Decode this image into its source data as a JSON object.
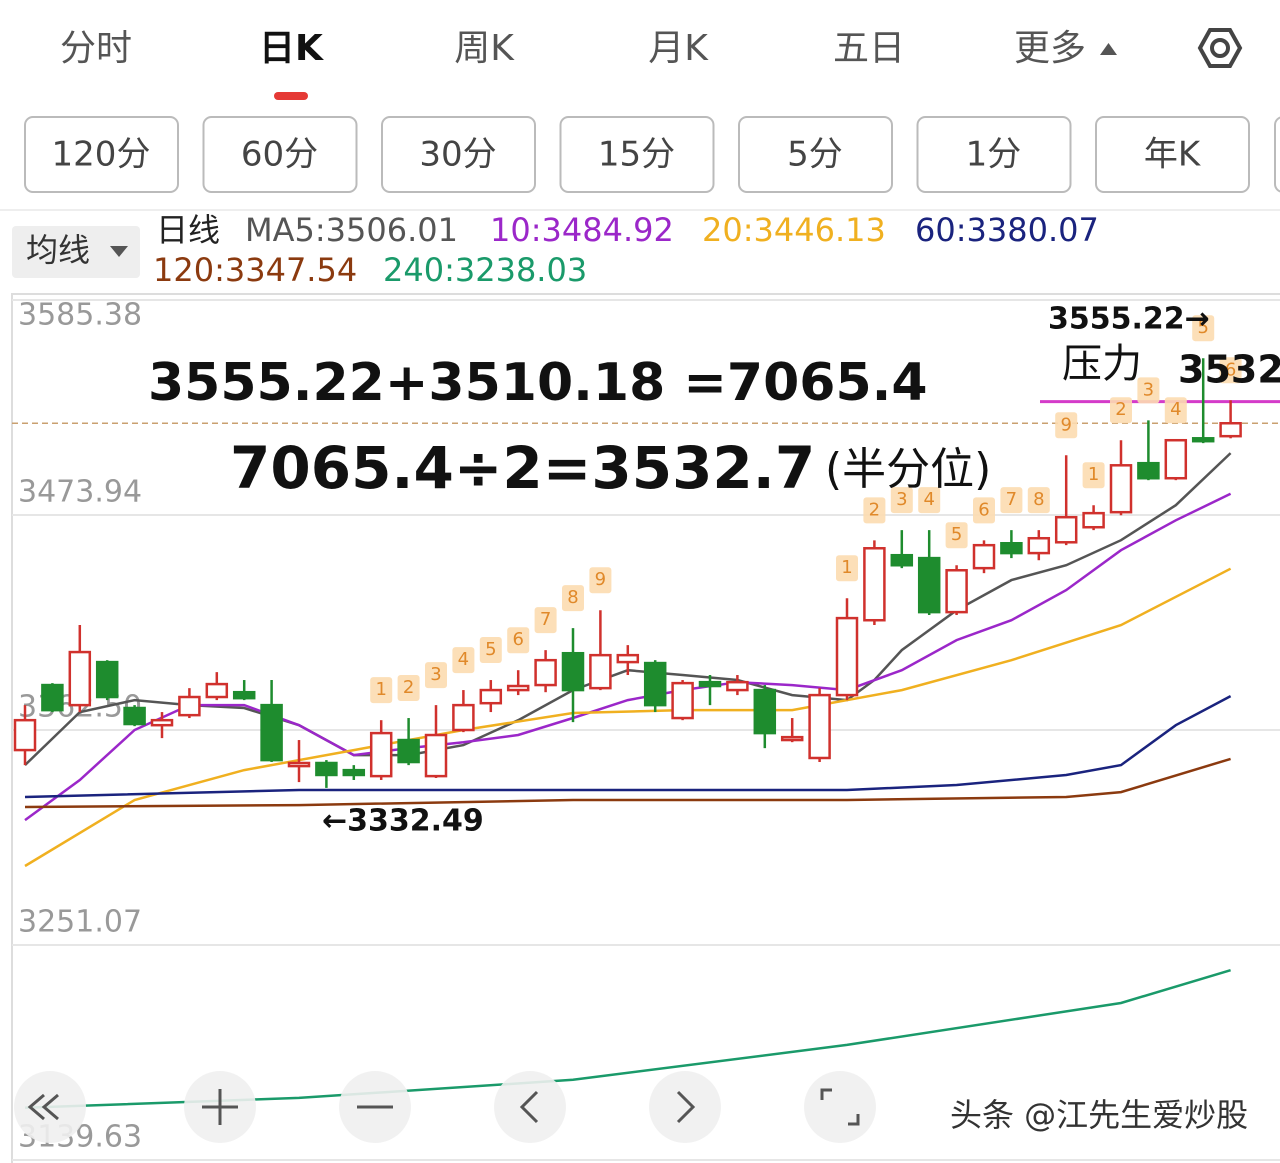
{
  "tabs": [
    "分时",
    "日K",
    "周K",
    "月K",
    "五日",
    "更多"
  ],
  "active_tab": 1,
  "sub_tabs": [
    "120分",
    "60分",
    "30分",
    "15分",
    "5分",
    "1分",
    "年K"
  ],
  "ma_button": "均线",
  "period_label": "日线",
  "watermark": "头条 @江先生爱炒股",
  "chart_data": {
    "type": "candlestick",
    "ylim": [
      3139.63,
      3585.38
    ],
    "yticks": [
      3585.38,
      3473.94,
      {
        "value": 3362.5,
        "label": "3362.50"
      },
      3251.07,
      3139.63
    ],
    "grid": true,
    "open": [
      3352.1,
      3385.8,
      3375.4,
      3397.7,
      3373.9,
      3365.0,
      3370.2,
      3379.6,
      3382.1,
      3375.4,
      3343.8,
      3345.4,
      3341.7,
      3338.6,
      3357.3,
      3338.6,
      3362.5,
      3376.4,
      3383.2,
      3385.8,
      3402.3,
      3384.2,
      3397.7,
      3397.2,
      3368.7,
      3387.3,
      3383.2,
      3383.2,
      3357.3,
      3348.0,
      3380.6,
      3419.4,
      3453.1,
      3451.6,
      3423.6,
      3446.4,
      3459.3,
      3454.2,
      3459.8,
      3467.6,
      3475.4,
      3500.8,
      3493.0,
      3513.7,
      3514.8
    ],
    "high": [
      3375.4,
      3386.8,
      3416.9,
      3398.7,
      3375.4,
      3371.8,
      3384.2,
      3392.5,
      3388.4,
      3388.4,
      3357.3,
      3346.9,
      3344.3,
      3367.6,
      3368.7,
      3375.4,
      3383.2,
      3388.4,
      3393.5,
      3403.9,
      3415.3,
      3424.6,
      3406.5,
      3398.7,
      3388.4,
      3391.0,
      3391.0,
      3385.8,
      3368.7,
      3384.2,
      3430.8,
      3460.8,
      3466.1,
      3466.1,
      3447.9,
      3460.8,
      3466.1,
      3466.1,
      3504.9,
      3479.0,
      3512.7,
      3523.0,
      3512.7,
      3555.22,
      3533.4
    ],
    "low": [
      3344.3,
      3371.8,
      3371.8,
      3378.0,
      3364.5,
      3358.3,
      3368.7,
      3378.0,
      3378.0,
      3345.9,
      3335.5,
      3332.49,
      3336.6,
      3336.6,
      3344.3,
      3337.6,
      3361.4,
      3371.8,
      3380.6,
      3382.1,
      3366.6,
      3383.2,
      3391.0,
      3371.8,
      3367.6,
      3375.4,
      3380.6,
      3353.1,
      3356.2,
      3345.9,
      3378.0,
      3416.9,
      3446.4,
      3422.1,
      3422.1,
      3443.8,
      3451.6,
      3450.5,
      3458.3,
      3466.1,
      3473.8,
      3492.0,
      3492.0,
      3511.2,
      3513.7
    ],
    "close": [
      3367.6,
      3372.8,
      3402.9,
      3379.6,
      3365.6,
      3367.6,
      3379.6,
      3386.3,
      3379.0,
      3346.9,
      3345.4,
      3339.2,
      3339.2,
      3360.9,
      3345.9,
      3359.9,
      3375.4,
      3383.2,
      3385.3,
      3398.7,
      3383.2,
      3401.3,
      3401.3,
      3375.4,
      3386.8,
      3385.3,
      3387.3,
      3360.9,
      3358.8,
      3380.6,
      3420.5,
      3456.7,
      3447.9,
      3423.6,
      3445.3,
      3458.3,
      3454.2,
      3461.9,
      3472.8,
      3474.9,
      3499.7,
      3493.0,
      3512.7,
      3512.2,
      3521.5
    ],
    "up_color": "#d0312d",
    "down_color": "#1e8c2e",
    "td_labels": [
      null,
      null,
      null,
      null,
      null,
      null,
      null,
      null,
      null,
      null,
      null,
      null,
      null,
      "1",
      "2",
      "3",
      "4",
      "5",
      "6",
      "7",
      "8",
      "9",
      null,
      null,
      null,
      null,
      null,
      null,
      null,
      null,
      "1",
      "2",
      "3",
      "4",
      "5",
      "6",
      "7",
      "8",
      "9",
      "1",
      "2",
      "3",
      "4",
      "5",
      "6"
    ],
    "series": [
      {
        "name": "MA5:3506.01",
        "color": "#555555",
        "x": [
          0,
          2,
          4,
          6,
          8,
          10,
          12,
          14,
          16,
          18,
          20,
          22,
          24,
          26,
          28,
          30,
          31,
          32,
          34,
          36,
          38,
          40,
          42,
          44
        ],
        "values": [
          3344.3,
          3371.8,
          3378.0,
          3375.4,
          3373.9,
          3365.0,
          3349.5,
          3349.5,
          3354.7,
          3367.6,
          3383.2,
          3393.5,
          3391.0,
          3388.4,
          3380.6,
          3378.0,
          3388.4,
          3403.9,
          3424.6,
          3440.2,
          3447.9,
          3460.9,
          3479.0,
          3506.01
        ]
      },
      {
        "name": "10:3484.92",
        "color": "#9b27c9",
        "x": [
          0,
          2,
          4,
          6,
          8,
          10,
          12,
          14,
          16,
          18,
          20,
          22,
          24,
          26,
          28,
          30,
          32,
          34,
          36,
          38,
          40,
          42,
          44
        ],
        "values": [
          3315.8,
          3336.6,
          3362.5,
          3375.4,
          3375.4,
          3365.0,
          3349.5,
          3353.1,
          3356.2,
          3359.9,
          3368.7,
          3378.0,
          3383.2,
          3387.3,
          3385.8,
          3383.2,
          3393.5,
          3409.1,
          3419.4,
          3435.0,
          3455.7,
          3471.2,
          3484.92
        ]
      },
      {
        "name": "20:3446.13",
        "color": "#f0b020",
        "x": [
          0,
          4,
          8,
          12,
          16,
          20,
          24,
          28,
          32,
          36,
          40,
          44
        ],
        "values": [
          3292.0,
          3326.2,
          3341.7,
          3352.1,
          3362.5,
          3371.3,
          3372.8,
          3372.8,
          3383.2,
          3398.7,
          3416.9,
          3446.13
        ]
      },
      {
        "name": "60:3380.07",
        "color": "#1a237e",
        "x": [
          0,
          10,
          20,
          30,
          34,
          38,
          40,
          42,
          44
        ],
        "values": [
          3327.8,
          3331.4,
          3331.4,
          3331.4,
          3334.0,
          3339.2,
          3344.3,
          3365.0,
          3380.07
        ]
      },
      {
        "name": "120:3347.54",
        "color": "#8b3a0f",
        "x": [
          0,
          10,
          20,
          30,
          38,
          40,
          44
        ],
        "values": [
          3322.6,
          3323.6,
          3326.2,
          3326.2,
          3327.8,
          3330.3,
          3347.54
        ]
      },
      {
        "name": "240:3238.03",
        "color": "#1a9a6a",
        "x": [
          0,
          10,
          20,
          30,
          40,
          44
        ],
        "values": [
          3166.7,
          3171.8,
          3181.2,
          3199.3,
          3221.0,
          3238.03
        ]
      }
    ],
    "reference_lines": [
      {
        "value": 3532.7,
        "color": "#d43bc9"
      },
      {
        "value": 3521.5,
        "color": "#c9a070",
        "dashed": true
      }
    ],
    "annotations": [
      "3555.22+3510.18 =7065.4",
      "7065.4÷2=3532.7",
      "(半分位)",
      "压力",
      "3532",
      "3555.22→",
      "←3332.49"
    ]
  }
}
